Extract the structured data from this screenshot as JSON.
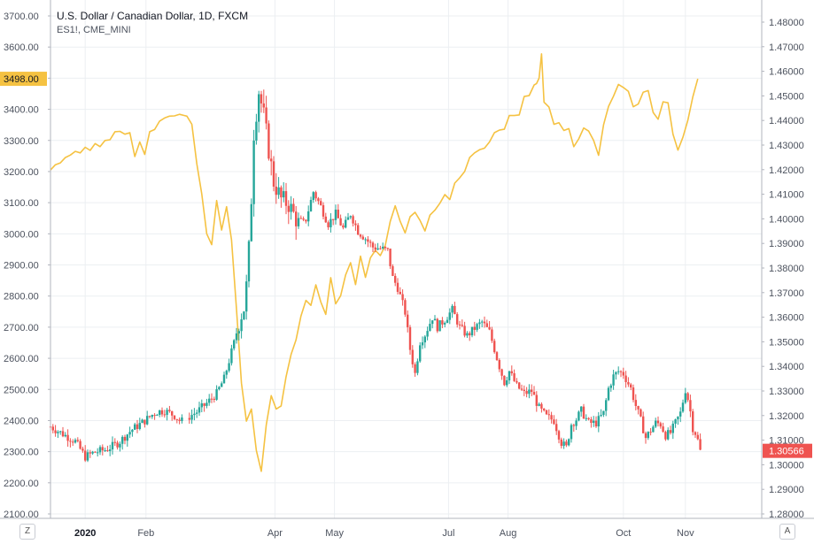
{
  "legend": {
    "title": "U.S. Dollar / Canadian Dollar, 1D, FXCM",
    "subtitle": "ES1!, CME_MINI"
  },
  "corner_buttons": {
    "left": "Z",
    "right": "A"
  },
  "colors": {
    "up": "#26a69a",
    "down": "#ef5350",
    "overlay": "#f5c242",
    "grid": "#eceff2",
    "axis_text": "#4c525e"
  },
  "chart_data": {
    "type": "candlestick",
    "left_axis": {
      "ticks": [
        "3700.00",
        "3600.00",
        "3500.00",
        "3400.00",
        "3300.00",
        "3200.00",
        "3100.00",
        "3000.00",
        "2900.00",
        "2800.00",
        "2700.00",
        "2600.00",
        "2500.00",
        "2400.00",
        "2300.00",
        "2200.00",
        "2100.00"
      ],
      "range": [
        2078,
        3740
      ],
      "last_value_label": "3498.00",
      "last_value": 3498
    },
    "right_axis": {
      "ticks": [
        "1.48000",
        "1.47000",
        "1.46000",
        "1.45000",
        "1.44000",
        "1.43000",
        "1.42000",
        "1.41000",
        "1.40000",
        "1.39000",
        "1.38000",
        "1.37000",
        "1.36000",
        "1.35000",
        "1.34000",
        "1.33000",
        "1.32000",
        "1.31000",
        "1.30000",
        "1.29000",
        "1.28000"
      ],
      "range": [
        1.2775,
        1.4847
      ],
      "last_value_label": "1.30566",
      "last_value": 1.30566
    },
    "x_axis": {
      "labels": [
        {
          "text": "2020",
          "idx": 28,
          "bold": true
        },
        {
          "text": "Feb",
          "idx": 77
        },
        {
          "text": "Apr",
          "idx": 181
        },
        {
          "text": "May",
          "idx": 229
        },
        {
          "text": "Jul",
          "idx": 321
        },
        {
          "text": "Aug",
          "idx": 369
        },
        {
          "text": "Oct",
          "idx": 462
        },
        {
          "text": "Nov",
          "idx": 512
        }
      ],
      "day_range": [
        0,
        560
      ]
    },
    "usdcad_close_path": [
      [
        0,
        1.3155
      ],
      [
        10,
        1.3125
      ],
      [
        20,
        1.3095
      ],
      [
        28,
        1.3032
      ],
      [
        35,
        1.305
      ],
      [
        45,
        1.3062
      ],
      [
        55,
        1.309
      ],
      [
        65,
        1.314
      ],
      [
        75,
        1.3175
      ],
      [
        85,
        1.3215
      ],
      [
        92,
        1.322
      ],
      [
        100,
        1.32
      ],
      [
        105,
        1.3175
      ],
      [
        110,
        1.319
      ],
      [
        118,
        1.3215
      ],
      [
        126,
        1.325
      ],
      [
        134,
        1.329
      ],
      [
        140,
        1.335
      ],
      [
        148,
        1.3495
      ],
      [
        153,
        1.36
      ],
      [
        157,
        1.365
      ],
      [
        161,
        1.395
      ],
      [
        164,
        1.435
      ],
      [
        168,
        1.452
      ],
      [
        172,
        1.442
      ],
      [
        176,
        1.428
      ],
      [
        180,
        1.415
      ],
      [
        186,
        1.408
      ],
      [
        192,
        1.406
      ],
      [
        198,
        1.4
      ],
      [
        205,
        1.398
      ],
      [
        212,
        1.411
      ],
      [
        218,
        1.405
      ],
      [
        224,
        1.398
      ],
      [
        230,
        1.402
      ],
      [
        236,
        1.396
      ],
      [
        242,
        1.402
      ],
      [
        248,
        1.395
      ],
      [
        254,
        1.392
      ],
      [
        260,
        1.3885
      ],
      [
        266,
        1.388
      ],
      [
        272,
        1.387
      ],
      [
        276,
        1.376
      ],
      [
        280,
        1.372
      ],
      [
        286,
        1.362
      ],
      [
        290,
        1.347
      ],
      [
        294,
        1.337
      ],
      [
        298,
        1.35
      ],
      [
        302,
        1.353
      ],
      [
        308,
        1.36
      ],
      [
        312,
        1.356
      ],
      [
        318,
        1.359
      ],
      [
        324,
        1.363
      ],
      [
        330,
        1.356
      ],
      [
        336,
        1.3525
      ],
      [
        342,
        1.3555
      ],
      [
        348,
        1.358
      ],
      [
        354,
        1.354
      ],
      [
        358,
        1.347
      ],
      [
        362,
        1.34
      ],
      [
        366,
        1.3335
      ],
      [
        370,
        1.338
      ],
      [
        376,
        1.332
      ],
      [
        382,
        1.329
      ],
      [
        388,
        1.33
      ],
      [
        394,
        1.323
      ],
      [
        400,
        1.3195
      ],
      [
        406,
        1.318
      ],
      [
        412,
        1.309
      ],
      [
        416,
        1.307
      ],
      [
        420,
        1.3165
      ],
      [
        424,
        1.3185
      ],
      [
        428,
        1.322
      ],
      [
        434,
        1.317
      ],
      [
        440,
        1.317
      ],
      [
        446,
        1.321
      ],
      [
        450,
        1.331
      ],
      [
        454,
        1.336
      ],
      [
        458,
        1.338
      ],
      [
        462,
        1.337
      ],
      [
        468,
        1.331
      ],
      [
        472,
        1.324
      ],
      [
        476,
        1.318
      ],
      [
        480,
        1.311
      ],
      [
        484,
        1.314
      ],
      [
        488,
        1.317
      ],
      [
        492,
        1.3165
      ],
      [
        496,
        1.312
      ],
      [
        500,
        1.313
      ],
      [
        504,
        1.317
      ],
      [
        508,
        1.321
      ],
      [
        512,
        1.3305
      ],
      [
        515,
        1.325
      ],
      [
        518,
        1.315
      ],
      [
        521,
        1.312
      ],
      [
        524,
        1.3056
      ]
    ],
    "es1_path": [
      [
        0,
        3205
      ],
      [
        4,
        3222
      ],
      [
        8,
        3228
      ],
      [
        12,
        3245
      ],
      [
        16,
        3253
      ],
      [
        20,
        3265
      ],
      [
        24,
        3260
      ],
      [
        28,
        3278
      ],
      [
        32,
        3268
      ],
      [
        36,
        3290
      ],
      [
        40,
        3280
      ],
      [
        44,
        3300
      ],
      [
        48,
        3302
      ],
      [
        52,
        3328
      ],
      [
        56,
        3329
      ],
      [
        60,
        3320
      ],
      [
        64,
        3325
      ],
      [
        68,
        3248
      ],
      [
        72,
        3295
      ],
      [
        76,
        3255
      ],
      [
        80,
        3328
      ],
      [
        84,
        3335
      ],
      [
        88,
        3362
      ],
      [
        92,
        3372
      ],
      [
        96,
        3378
      ],
      [
        100,
        3379
      ],
      [
        104,
        3384
      ],
      [
        108,
        3380
      ],
      [
        110,
        3378
      ],
      [
        114,
        3352
      ],
      [
        118,
        3225
      ],
      [
        122,
        3128
      ],
      [
        126,
        3000
      ],
      [
        130,
        2965
      ],
      [
        134,
        3107
      ],
      [
        138,
        3012
      ],
      [
        142,
        3087
      ],
      [
        146,
        2980
      ],
      [
        150,
        2758
      ],
      [
        154,
        2520
      ],
      [
        158,
        2398
      ],
      [
        162,
        2437
      ],
      [
        166,
        2304
      ],
      [
        170,
        2237
      ],
      [
        174,
        2386
      ],
      [
        178,
        2480
      ],
      [
        182,
        2437
      ],
      [
        186,
        2447
      ],
      [
        190,
        2541
      ],
      [
        194,
        2612
      ],
      [
        198,
        2659
      ],
      [
        202,
        2736
      ],
      [
        206,
        2786
      ],
      [
        210,
        2770
      ],
      [
        214,
        2836
      ],
      [
        218,
        2781
      ],
      [
        222,
        2741
      ],
      [
        226,
        2859
      ],
      [
        230,
        2775
      ],
      [
        234,
        2801
      ],
      [
        238,
        2868
      ],
      [
        242,
        2907
      ],
      [
        246,
        2837
      ],
      [
        250,
        2928
      ],
      [
        254,
        2860
      ],
      [
        258,
        2923
      ],
      [
        262,
        2947
      ],
      [
        266,
        2930
      ],
      [
        270,
        2963
      ],
      [
        274,
        3040
      ],
      [
        278,
        3090
      ],
      [
        282,
        3040
      ],
      [
        286,
        3003
      ],
      [
        290,
        3055
      ],
      [
        294,
        3069
      ],
      [
        298,
        3043
      ],
      [
        302,
        3009
      ],
      [
        306,
        3060
      ],
      [
        310,
        3076
      ],
      [
        314,
        3098
      ],
      [
        318,
        3126
      ],
      [
        322,
        3110
      ],
      [
        326,
        3163
      ],
      [
        330,
        3180
      ],
      [
        334,
        3200
      ],
      [
        338,
        3245
      ],
      [
        342,
        3260
      ],
      [
        346,
        3270
      ],
      [
        350,
        3275
      ],
      [
        354,
        3295
      ],
      [
        358,
        3325
      ],
      [
        362,
        3333
      ],
      [
        366,
        3336
      ],
      [
        370,
        3380
      ],
      [
        374,
        3380
      ],
      [
        378,
        3382
      ],
      [
        382,
        3441
      ],
      [
        386,
        3444
      ],
      [
        390,
        3478
      ],
      [
        392,
        3483
      ],
      [
        394,
        3500
      ],
      [
        396,
        3578
      ],
      [
        398,
        3423
      ],
      [
        402,
        3407
      ],
      [
        406,
        3352
      ],
      [
        410,
        3357
      ],
      [
        414,
        3332
      ],
      [
        418,
        3338
      ],
      [
        422,
        3280
      ],
      [
        426,
        3305
      ],
      [
        430,
        3340
      ],
      [
        434,
        3330
      ],
      [
        438,
        3300
      ],
      [
        442,
        3252
      ],
      [
        446,
        3350
      ],
      [
        450,
        3409
      ],
      [
        454,
        3442
      ],
      [
        458,
        3480
      ],
      [
        462,
        3470
      ],
      [
        466,
        3458
      ],
      [
        470,
        3408
      ],
      [
        474,
        3417
      ],
      [
        478,
        3455
      ],
      [
        482,
        3460
      ],
      [
        486,
        3390
      ],
      [
        490,
        3368
      ],
      [
        494,
        3424
      ],
      [
        498,
        3421
      ],
      [
        502,
        3320
      ],
      [
        506,
        3269
      ],
      [
        510,
        3310
      ],
      [
        514,
        3365
      ],
      [
        518,
        3440
      ],
      [
        522,
        3498
      ]
    ],
    "usdcad_candles_note": "daily OHLC synthesized along usdcad_close_path with gap at idx 107-110"
  }
}
